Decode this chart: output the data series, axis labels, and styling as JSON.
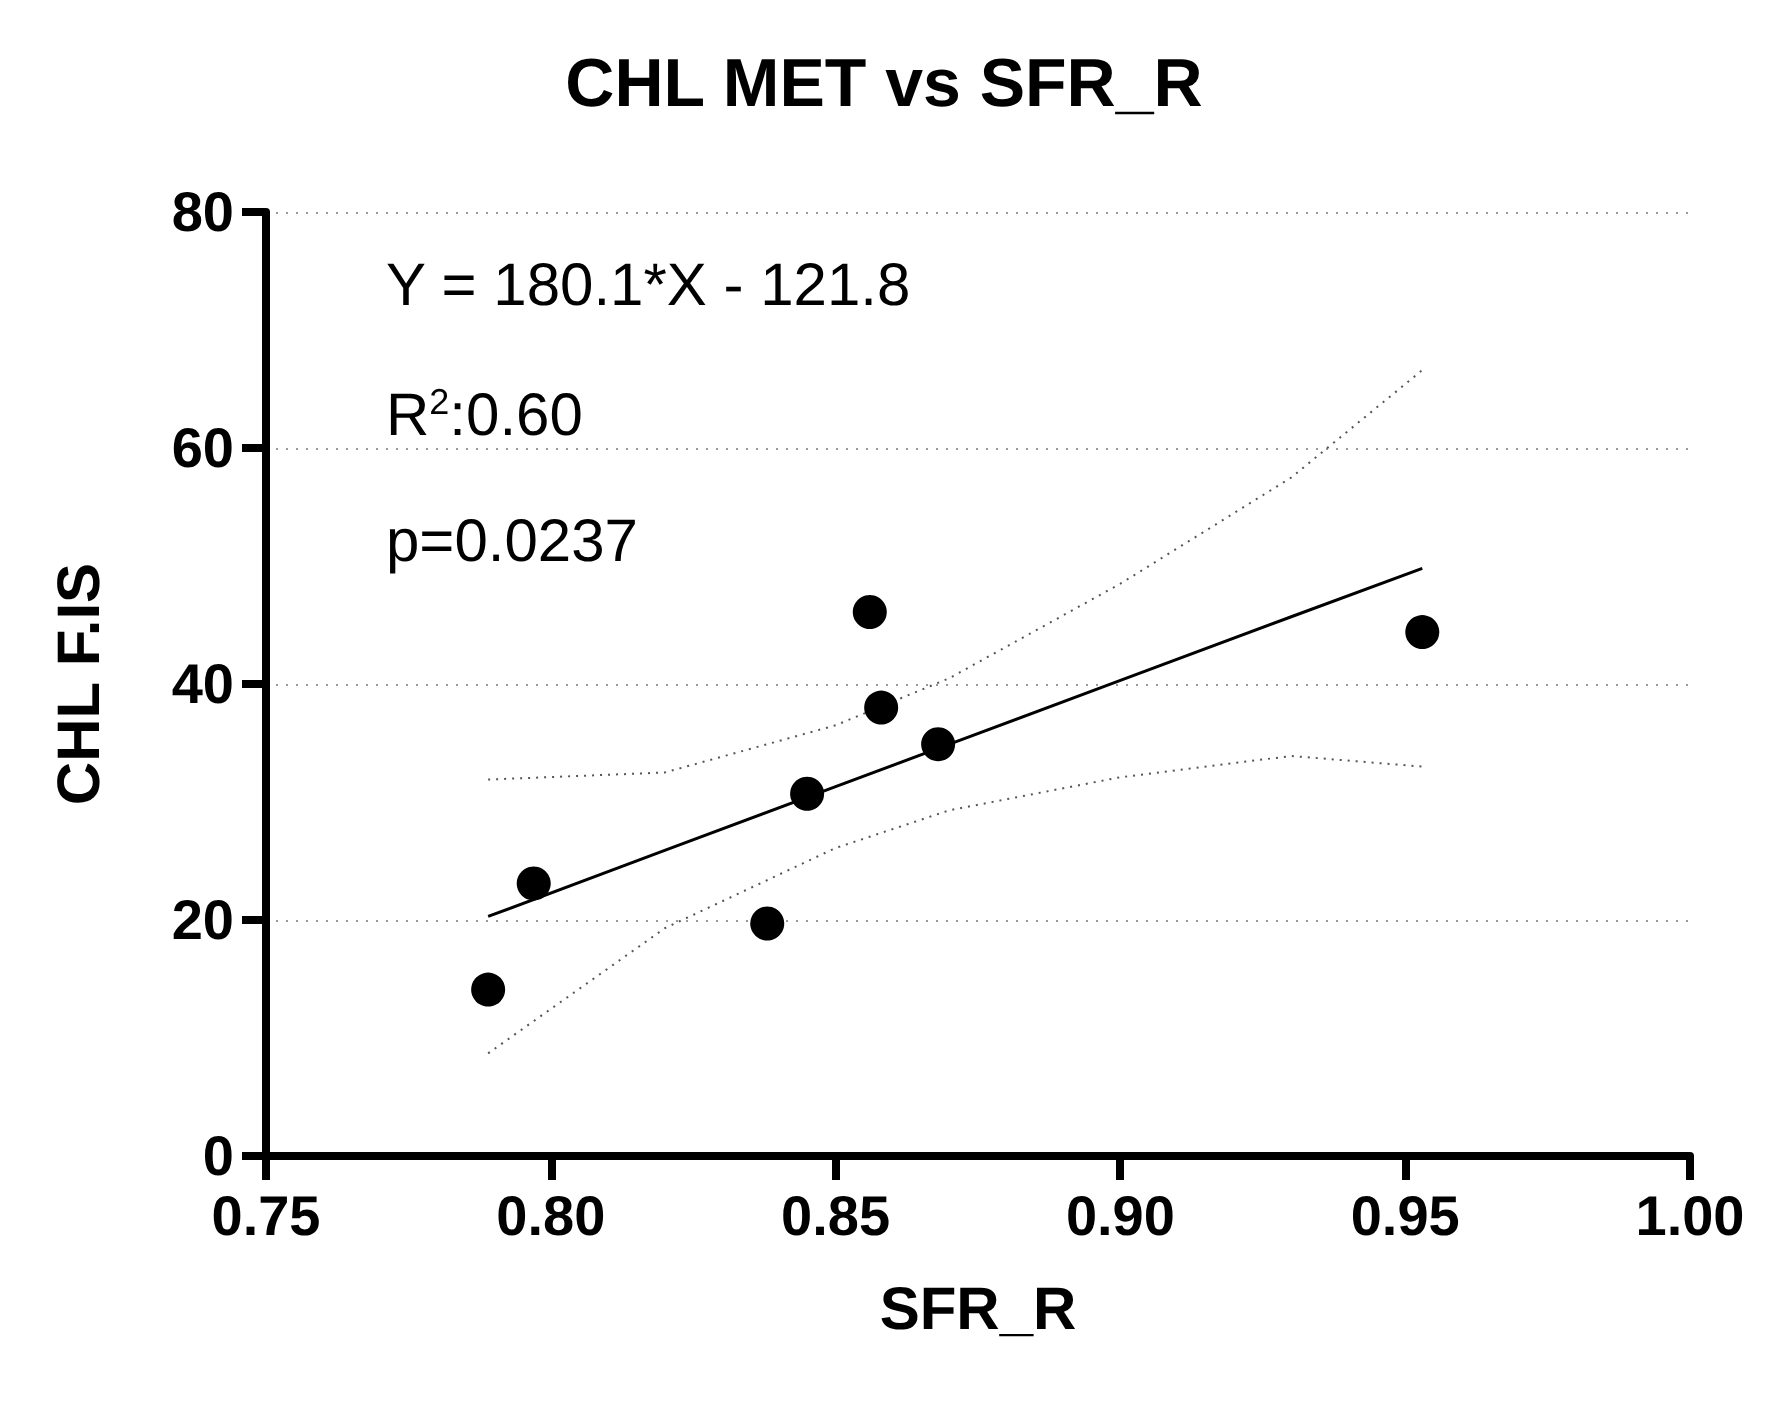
{
  "chart_data": {
    "type": "scatter",
    "title": "CHL MET vs SFR_R",
    "xlabel": "SFR_R",
    "ylabel": "CHL F.IS",
    "xlim": [
      0.75,
      1.0
    ],
    "xticks": [
      0.75,
      {
        "value": 0.8,
        "label": "0.80"
      },
      0.85,
      {
        "value": 0.9,
        "label": "0.90"
      },
      0.95,
      {
        "value": 1.0,
        "label": "1.00"
      }
    ],
    "ylim": [
      0,
      80
    ],
    "yticks": [
      0,
      20,
      40,
      60,
      80
    ],
    "grid": "y",
    "series": [
      {
        "color": "#000000",
        "marker": "circle",
        "x": [
          0.789,
          0.797,
          0.838,
          0.845,
          0.856,
          0.858,
          0.868,
          0.953
        ],
        "values": [
          14.1,
          23.1,
          19.7,
          30.7,
          46.1,
          38.0,
          34.9,
          44.4
        ]
      },
      {
        "type": "line",
        "color": "#000000",
        "marker": "none",
        "line_style": "solid",
        "x": [
          0.789,
          0.82,
          0.85,
          0.87,
          0.9,
          0.93,
          0.953
        ],
        "values": [
          20.3,
          25.9,
          31.3,
          34.9,
          40.3,
          45.7,
          49.8
        ]
      },
      {
        "type": "line",
        "color": "#555555",
        "marker": "none",
        "line_style": "dotted",
        "x": [
          0.789,
          0.82,
          0.85,
          0.87,
          0.9,
          0.93,
          0.953
        ],
        "values": [
          8.7,
          19.3,
          26.1,
          29.3,
          32.1,
          33.9,
          33.0
        ]
      },
      {
        "type": "line",
        "color": "#555555",
        "marker": "none",
        "line_style": "dotted",
        "x": [
          0.789,
          0.82,
          0.85,
          0.87,
          0.9,
          0.93,
          0.953
        ],
        "values": [
          31.9,
          32.5,
          36.5,
          40.5,
          48.5,
          57.5,
          66.6
        ]
      }
    ],
    "annotations": [
      "Y = 180.1*X - 121.8",
      "R$^{2}$:0.60",
      "p=0.0237"
    ]
  }
}
